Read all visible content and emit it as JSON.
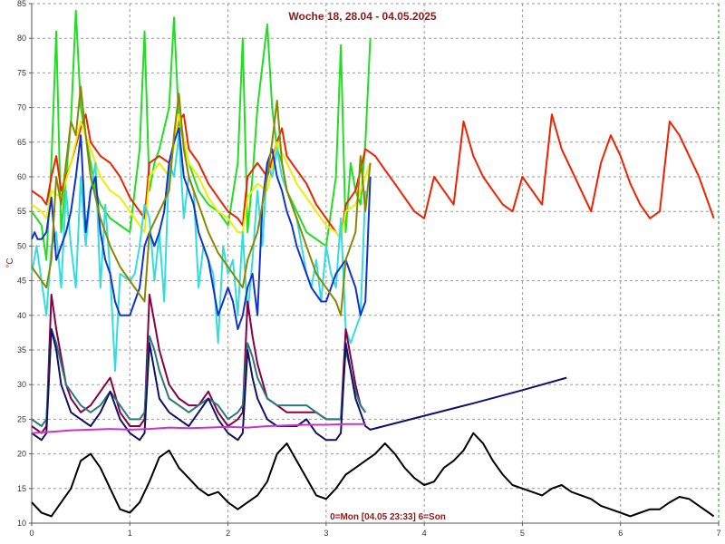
{
  "chart_data": {
    "type": "line",
    "title": "Woche 18, 28.04 - 04.05.2025",
    "xlabel": "0=Mon [04.05 23:33] 6=Son",
    "ylabel": "°C",
    "xlim": [
      0,
      7
    ],
    "ylim": [
      10,
      85
    ],
    "x_ticks": [
      0,
      1,
      2,
      3,
      4,
      5,
      6,
      7
    ],
    "y_ticks": [
      10,
      15,
      20,
      25,
      30,
      35,
      40,
      45,
      50,
      55,
      60,
      65,
      70,
      75,
      80,
      85
    ],
    "grid": true,
    "series": [
      {
        "color": "#22dd22",
        "x": [
          0.0,
          0.1,
          0.15,
          0.2,
          0.25,
          0.3,
          0.35,
          0.4,
          0.45,
          0.5,
          0.55,
          0.6,
          0.65,
          0.7,
          0.8,
          0.9,
          1.0,
          1.1,
          1.15,
          1.2,
          1.25,
          1.3,
          1.4,
          1.45,
          1.5,
          1.55,
          1.6,
          1.7,
          1.8,
          1.9,
          2.0,
          2.1,
          2.15,
          2.2,
          2.25,
          2.3,
          2.4,
          2.45,
          2.5,
          2.55,
          2.6,
          2.7,
          2.8,
          2.9,
          3.0,
          3.1,
          3.15,
          3.2,
          3.25,
          3.3,
          3.35,
          3.4,
          3.45
        ],
        "values": [
          55,
          53,
          48,
          62,
          81,
          52,
          60,
          68,
          84,
          70,
          66,
          62,
          58,
          56,
          54,
          53,
          52,
          64,
          81,
          58,
          62,
          64,
          70,
          83,
          68,
          65,
          62,
          58,
          56,
          55,
          53,
          62,
          80,
          52,
          60,
          70,
          82,
          70,
          64,
          62,
          58,
          55,
          52,
          51,
          50,
          60,
          79,
          52,
          62,
          58,
          56,
          65,
          80
        ]
      },
      {
        "color": "#ee2200",
        "x": [
          0.0,
          0.1,
          0.15,
          0.2,
          0.25,
          0.3,
          0.4,
          0.5,
          0.55,
          0.6,
          0.7,
          0.8,
          0.9,
          1.0,
          1.1,
          1.15,
          1.2,
          1.3,
          1.4,
          1.5,
          1.55,
          1.6,
          1.7,
          1.8,
          1.9,
          2.0,
          2.1,
          2.15,
          2.2,
          2.3,
          2.4,
          2.5,
          2.55,
          2.6,
          2.7,
          2.8,
          2.9,
          3.0,
          3.1,
          3.15,
          3.2,
          3.3,
          3.4,
          3.5,
          3.6,
          3.7,
          3.8,
          3.9,
          4.0,
          4.1,
          4.2,
          4.3,
          4.4,
          4.5,
          4.6,
          4.7,
          4.8,
          4.9,
          5.0,
          5.1,
          5.2,
          5.3,
          5.4,
          5.5,
          5.6,
          5.7,
          5.8,
          5.9,
          6.0,
          6.1,
          6.2,
          6.3,
          6.4,
          6.5,
          6.6,
          6.7,
          6.8,
          6.9,
          6.95
        ],
        "values": [
          58,
          57,
          56,
          60,
          63,
          58,
          62,
          67,
          69,
          65,
          63,
          62,
          60,
          57,
          55,
          54,
          62,
          63,
          62,
          68,
          69,
          64,
          62,
          59,
          57,
          55,
          54,
          53,
          60,
          62,
          60,
          65,
          67,
          63,
          61,
          59,
          56,
          54,
          52,
          51,
          56,
          58,
          64,
          63,
          61,
          59,
          57,
          55,
          54,
          60,
          58,
          56,
          68,
          63,
          60,
          58,
          56,
          55,
          60,
          58,
          56,
          69,
          64,
          61,
          58,
          55,
          62,
          66,
          63,
          59,
          56,
          54,
          55,
          68,
          66,
          63,
          60,
          56,
          54
        ]
      },
      {
        "color": "#eeee00",
        "x": [
          0.0,
          0.1,
          0.15,
          0.2,
          0.3,
          0.4,
          0.5,
          0.6,
          0.7,
          0.8,
          0.9,
          1.0,
          1.1,
          1.15,
          1.2,
          1.3,
          1.4,
          1.5,
          1.6,
          1.7,
          1.8,
          1.9,
          2.0,
          2.1,
          2.15,
          2.2,
          2.3,
          2.4,
          2.5,
          2.6,
          2.7,
          2.8,
          2.9,
          3.0,
          3.1,
          3.15,
          3.2,
          3.3,
          3.4,
          3.45
        ],
        "values": [
          56,
          55,
          54,
          58,
          57,
          62,
          68,
          64,
          60,
          58,
          57,
          55,
          53,
          52,
          60,
          62,
          60,
          69,
          62,
          60,
          57,
          55,
          54,
          52,
          52,
          57,
          59,
          58,
          65,
          62,
          59,
          57,
          55,
          53,
          52,
          51,
          55,
          56,
          60,
          62
        ]
      },
      {
        "color": "#33dddd",
        "x": [
          0.0,
          0.05,
          0.1,
          0.15,
          0.2,
          0.25,
          0.3,
          0.35,
          0.4,
          0.45,
          0.5,
          0.55,
          0.6,
          0.65,
          0.7,
          0.75,
          0.8,
          0.85,
          0.9,
          1.0,
          1.05,
          1.1,
          1.15,
          1.2,
          1.25,
          1.3,
          1.35,
          1.4,
          1.45,
          1.5,
          1.55,
          1.6,
          1.65,
          1.7,
          1.75,
          1.8,
          1.85,
          1.9,
          1.95,
          2.0,
          2.05,
          2.1,
          2.15,
          2.2,
          2.25,
          2.3,
          2.35,
          2.4,
          2.45,
          2.5,
          2.55,
          2.6,
          2.65,
          2.7,
          2.75,
          2.8,
          2.85,
          2.9,
          2.95,
          3.0,
          3.05,
          3.1,
          3.15,
          3.2,
          3.25,
          3.3,
          3.35,
          3.4
        ],
        "values": [
          46,
          50,
          45,
          40,
          50,
          52,
          44,
          58,
          50,
          44,
          60,
          50,
          58,
          62,
          44,
          56,
          46,
          32,
          46,
          45,
          46,
          50,
          56,
          54,
          45,
          52,
          42,
          62,
          60,
          66,
          54,
          60,
          58,
          44,
          50,
          48,
          46,
          36,
          50,
          46,
          48,
          40,
          52,
          40,
          48,
          58,
          50,
          62,
          60,
          64,
          60,
          58,
          56,
          54,
          50,
          46,
          44,
          48,
          42,
          50,
          46,
          44,
          54,
          38,
          36,
          38,
          40,
          58
        ]
      },
      {
        "color": "#1133cc",
        "x": [
          0.0,
          0.03,
          0.06,
          0.1,
          0.15,
          0.2,
          0.25,
          0.3,
          0.35,
          0.4,
          0.45,
          0.5,
          0.55,
          0.6,
          0.65,
          0.7,
          0.75,
          0.8,
          0.85,
          0.9,
          1.0,
          1.05,
          1.1,
          1.15,
          1.2,
          1.25,
          1.3,
          1.35,
          1.4,
          1.45,
          1.5,
          1.55,
          1.6,
          1.65,
          1.7,
          1.75,
          1.8,
          1.85,
          1.9,
          1.95,
          2.0,
          2.05,
          2.1,
          2.15,
          2.2,
          2.25,
          2.3,
          2.35,
          2.4,
          2.45,
          2.5,
          2.55,
          2.6,
          2.65,
          2.7,
          2.75,
          2.8,
          2.85,
          2.9,
          2.95,
          3.0,
          3.05,
          3.1,
          3.15,
          3.2,
          3.25,
          3.3,
          3.35,
          3.4,
          3.45
        ],
        "values": [
          51,
          52,
          51,
          51,
          52,
          57,
          48,
          50,
          52,
          55,
          60,
          66,
          52,
          58,
          60,
          52,
          48,
          46,
          42,
          40,
          40,
          42,
          44,
          50,
          52,
          50,
          52,
          55,
          62,
          65,
          67,
          60,
          58,
          56,
          52,
          50,
          48,
          44,
          40,
          42,
          44,
          42,
          38,
          40,
          44,
          46,
          40,
          56,
          62,
          64,
          60,
          58,
          55,
          53,
          50,
          48,
          46,
          44,
          43,
          42,
          42,
          44,
          46,
          47,
          48,
          46,
          44,
          40,
          42,
          60
        ]
      },
      {
        "color": "#888800",
        "x": [
          0.0,
          0.1,
          0.15,
          0.2,
          0.25,
          0.3,
          0.35,
          0.4,
          0.45,
          0.5,
          0.55,
          0.6,
          0.7,
          0.8,
          0.9,
          1.0,
          1.1,
          1.15,
          1.2,
          1.3,
          1.4,
          1.45,
          1.5,
          1.55,
          1.6,
          1.7,
          1.8,
          1.9,
          2.0,
          2.1,
          2.15,
          2.2,
          2.3,
          2.4,
          2.45,
          2.5,
          2.55,
          2.6,
          2.7,
          2.8,
          2.9,
          3.0,
          3.1,
          3.15,
          3.2,
          3.3,
          3.35,
          3.4,
          3.45
        ],
        "values": [
          47,
          45,
          44,
          48,
          60,
          56,
          62,
          68,
          66,
          73,
          66,
          60,
          54,
          50,
          47,
          45,
          43,
          42,
          52,
          55,
          58,
          66,
          72,
          64,
          60,
          56,
          52,
          49,
          47,
          45,
          44,
          48,
          52,
          60,
          65,
          71,
          62,
          58,
          54,
          50,
          46,
          44,
          42,
          40,
          48,
          52,
          63,
          55,
          62
        ]
      },
      {
        "color": "#880044",
        "x": [
          0.0,
          0.1,
          0.15,
          0.2,
          0.25,
          0.3,
          0.35,
          0.4,
          0.45,
          0.5,
          0.6,
          0.7,
          0.8,
          0.9,
          1.0,
          1.1,
          1.15,
          1.2,
          1.25,
          1.3,
          1.4,
          1.5,
          1.6,
          1.7,
          1.8,
          1.9,
          2.0,
          2.1,
          2.15,
          2.2,
          2.25,
          2.3,
          2.4,
          2.5,
          2.6,
          2.7,
          2.8,
          2.9,
          3.0,
          3.1,
          3.15,
          3.2,
          3.25,
          3.3,
          3.35,
          3.4
        ],
        "values": [
          24,
          23,
          24,
          43,
          38,
          34,
          30,
          28,
          27,
          26,
          27,
          29,
          31,
          26,
          24,
          24,
          25,
          43,
          39,
          35,
          30,
          28,
          27,
          27,
          29,
          26,
          24,
          25,
          26,
          42,
          37,
          33,
          28,
          27,
          26,
          26,
          26,
          26,
          25,
          25,
          25,
          38,
          34,
          30,
          27,
          26
        ]
      },
      {
        "color": "#2a7a7a",
        "x": [
          0.0,
          0.1,
          0.15,
          0.2,
          0.25,
          0.3,
          0.35,
          0.4,
          0.45,
          0.5,
          0.6,
          0.7,
          0.8,
          0.9,
          1.0,
          1.1,
          1.15,
          1.2,
          1.25,
          1.3,
          1.4,
          1.5,
          1.6,
          1.7,
          1.8,
          1.9,
          2.0,
          2.1,
          2.15,
          2.2,
          2.25,
          2.3,
          2.4,
          2.5,
          2.6,
          2.7,
          2.8,
          2.9,
          3.0,
          3.1,
          3.15,
          3.2,
          3.25,
          3.3,
          3.35,
          3.4
        ],
        "values": [
          25,
          24,
          25,
          38,
          36,
          33,
          30,
          29,
          28,
          27,
          26,
          27,
          29,
          27,
          25,
          25,
          26,
          37,
          35,
          32,
          28,
          27,
          26,
          27,
          28,
          27,
          25,
          26,
          27,
          36,
          34,
          31,
          28,
          27,
          27,
          27,
          27,
          26,
          25,
          25,
          25,
          35,
          32,
          29,
          27,
          26
        ]
      },
      {
        "color": "#111166",
        "x": [
          0.0,
          0.1,
          0.15,
          0.2,
          0.25,
          0.3,
          0.35,
          0.4,
          0.5,
          0.6,
          0.7,
          0.8,
          0.9,
          1.0,
          1.1,
          1.15,
          1.2,
          1.25,
          1.3,
          1.4,
          1.5,
          1.6,
          1.7,
          1.8,
          1.9,
          2.0,
          2.1,
          2.15,
          2.2,
          2.25,
          2.3,
          2.4,
          2.5,
          2.6,
          2.7,
          2.8,
          2.9,
          3.0,
          3.1,
          3.15,
          3.2,
          3.25,
          3.3,
          3.35,
          3.4,
          3.45,
          4.0,
          4.5,
          5.0,
          5.45
        ],
        "values": [
          23,
          22,
          23,
          38,
          35,
          30,
          28,
          26,
          25,
          24,
          26,
          29,
          25,
          23,
          22,
          23,
          36,
          32,
          28,
          26,
          25,
          24,
          26,
          28,
          25,
          23,
          22,
          23,
          35,
          31,
          28,
          25,
          24,
          24,
          24,
          25,
          23,
          22,
          22,
          23,
          36,
          32,
          28,
          26,
          24,
          23.5,
          25.5,
          27.3,
          29.2,
          31
        ]
      },
      {
        "color": "#cc33cc",
        "x": [
          0.0,
          0.2,
          0.4,
          0.6,
          0.8,
          1.0,
          1.2,
          1.4,
          1.6,
          1.8,
          2.0,
          2.2,
          2.4,
          2.6,
          2.8,
          3.0,
          3.2,
          3.4
        ],
        "values": [
          23,
          23.2,
          23.4,
          23.5,
          23.6,
          23.5,
          23.6,
          23.8,
          23.7,
          23.8,
          23.9,
          23.8,
          24,
          24.1,
          24.2,
          24.2,
          24.3,
          24.3
        ]
      },
      {
        "color": "#000000",
        "x": [
          0.0,
          0.1,
          0.2,
          0.3,
          0.4,
          0.5,
          0.6,
          0.7,
          0.8,
          0.9,
          1.0,
          1.1,
          1.2,
          1.3,
          1.4,
          1.5,
          1.6,
          1.7,
          1.8,
          1.9,
          2.0,
          2.1,
          2.2,
          2.3,
          2.4,
          2.5,
          2.6,
          2.7,
          2.8,
          2.9,
          3.0,
          3.1,
          3.2,
          3.3,
          3.4,
          3.5,
          3.6,
          3.7,
          3.8,
          3.9,
          4.0,
          4.1,
          4.2,
          4.3,
          4.4,
          4.5,
          4.6,
          4.7,
          4.8,
          4.9,
          5.0,
          5.1,
          5.2,
          5.3,
          5.4,
          5.5,
          5.6,
          5.7,
          5.8,
          5.9,
          6.0,
          6.1,
          6.2,
          6.3,
          6.4,
          6.5,
          6.6,
          6.7,
          6.8,
          6.9,
          6.95
        ],
        "values": [
          13,
          11.5,
          11,
          13,
          15,
          19,
          20,
          18,
          15,
          12,
          11.5,
          13,
          16,
          19.5,
          20.5,
          18,
          16.5,
          15,
          14,
          14.5,
          13,
          12,
          13,
          14,
          16,
          20,
          21.5,
          19,
          16.5,
          14,
          13.5,
          15,
          17,
          18,
          19,
          20,
          21.5,
          20,
          18,
          16.5,
          15.5,
          16,
          18,
          19,
          20.5,
          23,
          21.5,
          19,
          17,
          15.5,
          15,
          14.5,
          14,
          15,
          15.5,
          14.5,
          14,
          13.5,
          12.5,
          12,
          11.5,
          11,
          11.5,
          12,
          12,
          13,
          13.8,
          13.5,
          12.5,
          11.5,
          11
        ]
      }
    ]
  }
}
